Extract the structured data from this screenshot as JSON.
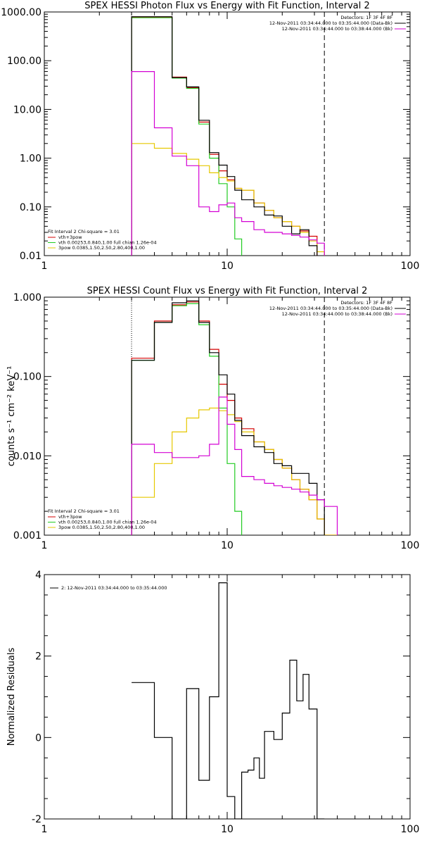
{
  "chart_data": [
    {
      "type": "line",
      "title": "SPEX HESSI Photon Flux vs Energy with Fit Function, Interval 2",
      "xlabel": "",
      "ylabel": "",
      "xscale": "log",
      "yscale": "log",
      "xlim": [
        1,
        100
      ],
      "ylim": [
        0.01,
        1000
      ],
      "x_ticks": [
        "1",
        "10",
        "100"
      ],
      "y_ticks": [
        "0.01",
        "0.10",
        "1.00",
        "10.00",
        "100.00",
        "1000.00"
      ],
      "legend_left_header": "Fit Interval 2   Chi-square = 3.01",
      "legend_right": [
        {
          "text": "Detectors: 1F 3F 4F 8F",
          "color": "#000000"
        },
        {
          "text": "12-Nov-2011 03:34:44.000 to 03:35:44.000 (Data-Bk)",
          "color": "#000000"
        },
        {
          "text": "12-Nov-2011 03:34:44.000 to 03:38:44.000 (Bk)",
          "color": "#d400d4"
        }
      ],
      "bin_edges": [
        3,
        4,
        5,
        6,
        7,
        8,
        9,
        10,
        11,
        12,
        14,
        16,
        18,
        20,
        22.5,
        25,
        28,
        31,
        34,
        40
      ],
      "vline_dotted": 3,
      "vline_dashed": 34,
      "series": [
        {
          "name": "vth+3pow",
          "color": "#d40000",
          "values": [
            780,
            780,
            46,
            28,
            5.5,
            1.2,
            0.55,
            0.36,
            0.24,
            0.22,
            0.12,
            0.085,
            0.06,
            0.05,
            0.04,
            0.032,
            0.025,
            null,
            null
          ]
        },
        {
          "name": "vth 0.00253,0.840,1.00  full chian 1.26e-04",
          "color": "#22cc22",
          "values": [
            760,
            760,
            44,
            27,
            5.0,
            1.0,
            0.3,
            0.1,
            0.022,
            0.005,
            null,
            null,
            null,
            null,
            null,
            null,
            null,
            null,
            null
          ]
        },
        {
          "name": "3pow 0.0385,1.50,2.50,2.80,400,1.00",
          "color": "#e6c800",
          "values": [
            2.0,
            1.6,
            1.25,
            0.95,
            0.7,
            0.5,
            0.4,
            0.34,
            0.24,
            0.22,
            0.12,
            0.085,
            0.06,
            0.05,
            0.04,
            0.03,
            0.02,
            0.012,
            null
          ]
        },
        {
          "name": "Data-Bk",
          "color": "#000000",
          "values": [
            800,
            800,
            45,
            29,
            6.0,
            1.3,
            0.72,
            0.42,
            0.22,
            0.14,
            0.1,
            0.068,
            0.065,
            0.04,
            0.028,
            0.034,
            0.016,
            null,
            null
          ]
        },
        {
          "name": "Bk",
          "color": "#d400d4",
          "values": [
            60,
            4.2,
            1.1,
            0.7,
            0.1,
            0.08,
            0.11,
            0.12,
            0.06,
            0.05,
            0.034,
            0.03,
            0.03,
            0.028,
            0.026,
            0.024,
            0.021,
            0.018,
            null
          ]
        }
      ]
    },
    {
      "type": "line",
      "title": "SPEX HESSI Count Flux vs Energy with Fit Function, Interval 2",
      "xlabel": "",
      "ylabel": "counts s⁻¹ cm⁻² keV⁻¹",
      "xscale": "log",
      "yscale": "log",
      "xlim": [
        1,
        100
      ],
      "ylim": [
        0.001,
        1
      ],
      "x_ticks": [
        "1",
        "10",
        "100"
      ],
      "y_ticks": [
        "0.001",
        "0.010",
        "0.100",
        "1.000"
      ],
      "legend_left_header": "Fit Interval 2   Chi-square = 3.01",
      "legend_right": [
        {
          "text": "Detectors: 1F 3F 4F 8F",
          "color": "#000000"
        },
        {
          "text": "12-Nov-2011 03:34:44.000 to 03:35:44.000 (Data-Bk)",
          "color": "#000000"
        },
        {
          "text": "12-Nov-2011 03:34:44.000 to 03:38:44.000 (Bk)",
          "color": "#d400d4"
        }
      ],
      "bin_edges": [
        3,
        4,
        5,
        6,
        7,
        8,
        9,
        10,
        11,
        12,
        14,
        16,
        18,
        20,
        22.5,
        25,
        28,
        31,
        34,
        40
      ],
      "vline_dotted": 3,
      "vline_dashed": 34,
      "series": [
        {
          "name": "vth+3pow",
          "color": "#d40000",
          "values": [
            0.17,
            0.5,
            0.8,
            0.87,
            0.5,
            0.22,
            0.08,
            0.05,
            0.03,
            0.022,
            0.015,
            0.012,
            0.009,
            0.007,
            0.005,
            0.0038,
            0.0028,
            0.0016,
            0.001
          ]
        },
        {
          "name": "vth 0.00253,0.840,1.00  full chian 1.26e-04",
          "color": "#22cc22",
          "values": [
            0.16,
            0.48,
            0.78,
            0.83,
            0.45,
            0.18,
            0.04,
            0.008,
            0.002,
            0.0008,
            null,
            null,
            null,
            null,
            null,
            null,
            null,
            null,
            null
          ]
        },
        {
          "name": "3pow 0.0385,1.50,2.50,2.80,400,1.00",
          "color": "#e6c800",
          "values": [
            0.003,
            0.008,
            0.02,
            0.03,
            0.038,
            0.04,
            0.037,
            0.033,
            0.027,
            0.02,
            0.015,
            0.012,
            0.009,
            0.007,
            0.005,
            0.0038,
            0.0028,
            0.0016,
            0.001
          ]
        },
        {
          "name": "Data-Bk",
          "color": "#000000",
          "values": [
            0.16,
            0.48,
            0.85,
            0.9,
            0.48,
            0.2,
            0.105,
            0.06,
            0.028,
            0.018,
            0.013,
            0.011,
            0.008,
            0.0075,
            0.006,
            0.006,
            0.0045,
            0.0028,
            null
          ]
        },
        {
          "name": "Bk",
          "color": "#d400d4",
          "values": [
            0.014,
            0.011,
            0.0095,
            0.0095,
            0.01,
            0.014,
            0.055,
            0.025,
            0.012,
            0.0055,
            0.005,
            0.0045,
            0.0042,
            0.004,
            0.0038,
            0.0035,
            0.0032,
            0.0028,
            0.0023
          ]
        }
      ]
    },
    {
      "type": "line",
      "title": "",
      "xlabel": "",
      "ylabel": "Normalized Residuals",
      "xscale": "log",
      "yscale": "linear",
      "xlim": [
        1,
        100
      ],
      "ylim": [
        -2,
        4
      ],
      "x_ticks": [
        "1",
        "10",
        "100"
      ],
      "y_ticks": [
        "-2",
        "0",
        "2",
        "4"
      ],
      "legend": "2: 12-Nov-2011 03:34:44.000 to 03:35:44.000",
      "bin_edges": [
        3,
        4,
        5,
        6,
        7,
        8,
        9,
        10,
        11,
        12,
        13,
        14,
        15,
        16,
        18,
        20,
        22,
        24,
        26,
        28,
        31,
        34
      ],
      "series": [
        {
          "name": "2: 12-Nov-2011 03:34:44.000 to 03:35:44.000",
          "color": "#000000",
          "values": [
            1.35,
            0.0,
            -2.0,
            1.2,
            -1.05,
            1.0,
            3.8,
            -1.45,
            -2.0,
            -0.85,
            -0.8,
            -0.5,
            -1.0,
            0.15,
            -0.05,
            0.6,
            1.9,
            0.9,
            1.55,
            0.7,
            -2.0
          ]
        }
      ]
    }
  ]
}
